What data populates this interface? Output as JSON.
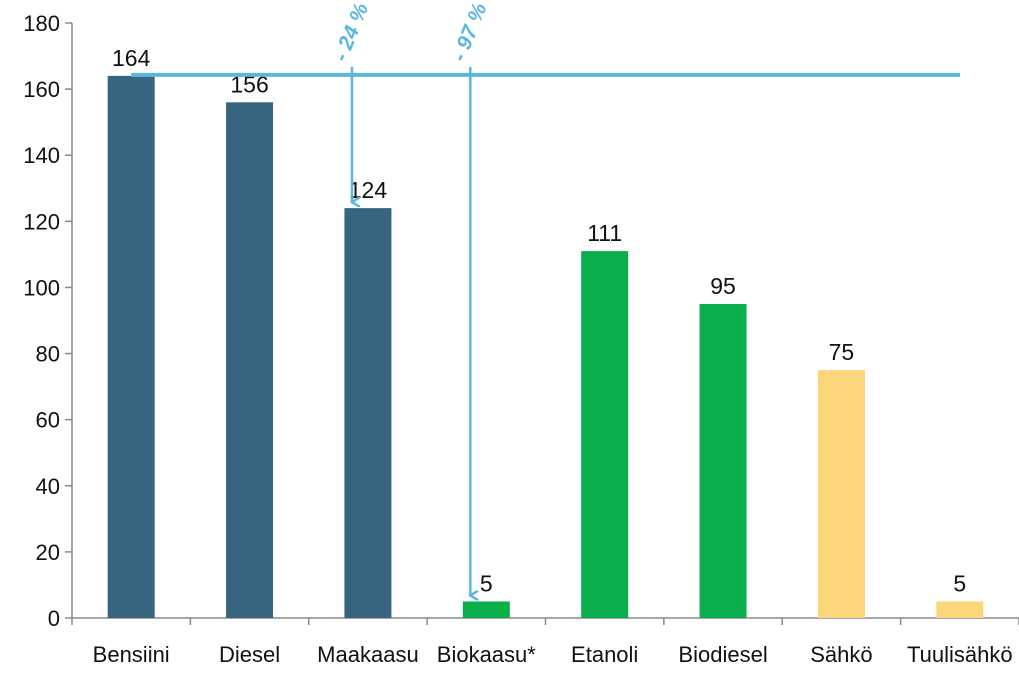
{
  "chart_data": {
    "type": "bar",
    "title": "",
    "xlabel": "",
    "ylabel": "",
    "ylim": [
      0,
      180
    ],
    "yticks": [
      0,
      20,
      40,
      60,
      80,
      100,
      120,
      140,
      160,
      180
    ],
    "grid": false,
    "legend": "none",
    "categories": [
      "Bensiini",
      "Diesel",
      "Maakaasu",
      "Biokaasu*",
      "Etanoli",
      "Biodiesel",
      "Sähkö",
      "Tuulisähkö"
    ],
    "values": [
      164,
      156,
      124,
      5,
      111,
      95,
      75,
      5
    ],
    "data_labels": [
      "164",
      "156",
      "124",
      "5",
      "111",
      "95",
      "75",
      "5"
    ],
    "bar_colors": [
      "#376580",
      "#376580",
      "#376580",
      "#0aae4b",
      "#0aae4b",
      "#0aae4b",
      "#fdd57b",
      "#fdd57b"
    ],
    "reference_line": {
      "value": 164,
      "color": "#5ab8dc"
    },
    "annotations": [
      {
        "text": "- 24 %",
        "category": "Maakaasu",
        "from": 164,
        "to": 124
      },
      {
        "text": "- 97 %",
        "category": "Biokaasu*",
        "from": 164,
        "to": 5
      }
    ]
  }
}
